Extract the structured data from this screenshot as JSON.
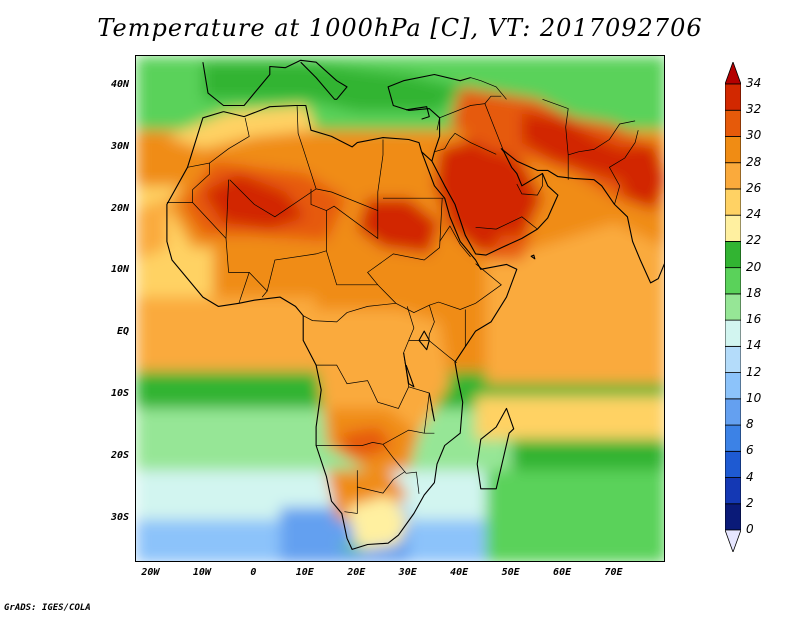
{
  "title": "Temperature at 1000hPa [C], VT: 2017092706",
  "credit": "GrADS: IGES/COLA",
  "map": {
    "lon_range": [
      -23,
      80
    ],
    "lat_range": [
      -37,
      45
    ],
    "lat_ticks": [
      "40N",
      "30N",
      "20N",
      "10N",
      "EQ",
      "10S",
      "20S",
      "30S"
    ],
    "lat_values": [
      40,
      30,
      20,
      10,
      0,
      -10,
      -20,
      -30
    ],
    "lon_ticks": [
      "20W",
      "10W",
      "0",
      "10E",
      "20E",
      "30E",
      "40E",
      "50E",
      "60E",
      "70E"
    ],
    "lon_values": [
      -20,
      -10,
      0,
      10,
      20,
      30,
      40,
      50,
      60,
      70
    ]
  },
  "colorbar": {
    "levels": [
      "0",
      "2",
      "4",
      "6",
      "8",
      "10",
      "12",
      "14",
      "16",
      "18",
      "20",
      "22",
      "24",
      "26",
      "28",
      "30",
      "32",
      "34"
    ],
    "colors": [
      "#e6e6ff",
      "#0a1a78",
      "#1438b4",
      "#1e5ad2",
      "#3c82e6",
      "#64a0f0",
      "#8cc3fa",
      "#b4dcfa",
      "#d2f5f0",
      "#96e696",
      "#5ad25a",
      "#32b432",
      "#fff0a0",
      "#ffd264",
      "#faaa3c",
      "#f08c14",
      "#e65a0a",
      "#d22800",
      "#b40000"
    ]
  },
  "chart_data": {
    "type": "heatmap",
    "title": "Temperature at 1000hPa [C], VT: 2017092706",
    "variable": "Temperature at 1000hPa",
    "units": "C",
    "valid_time": "2017092706",
    "x": [
      "20W",
      "10W",
      "0",
      "10E",
      "20E",
      "30E",
      "40E",
      "50E",
      "60E",
      "70E"
    ],
    "y": [
      "40N",
      "30N",
      "20N",
      "10N",
      "EQ",
      "10S",
      "20S",
      "30S"
    ],
    "color_levels": [
      0,
      2,
      4,
      6,
      8,
      10,
      12,
      14,
      16,
      18,
      20,
      22,
      24,
      26,
      28,
      30,
      32,
      34
    ],
    "legend_placement": "right",
    "grid": false
  }
}
